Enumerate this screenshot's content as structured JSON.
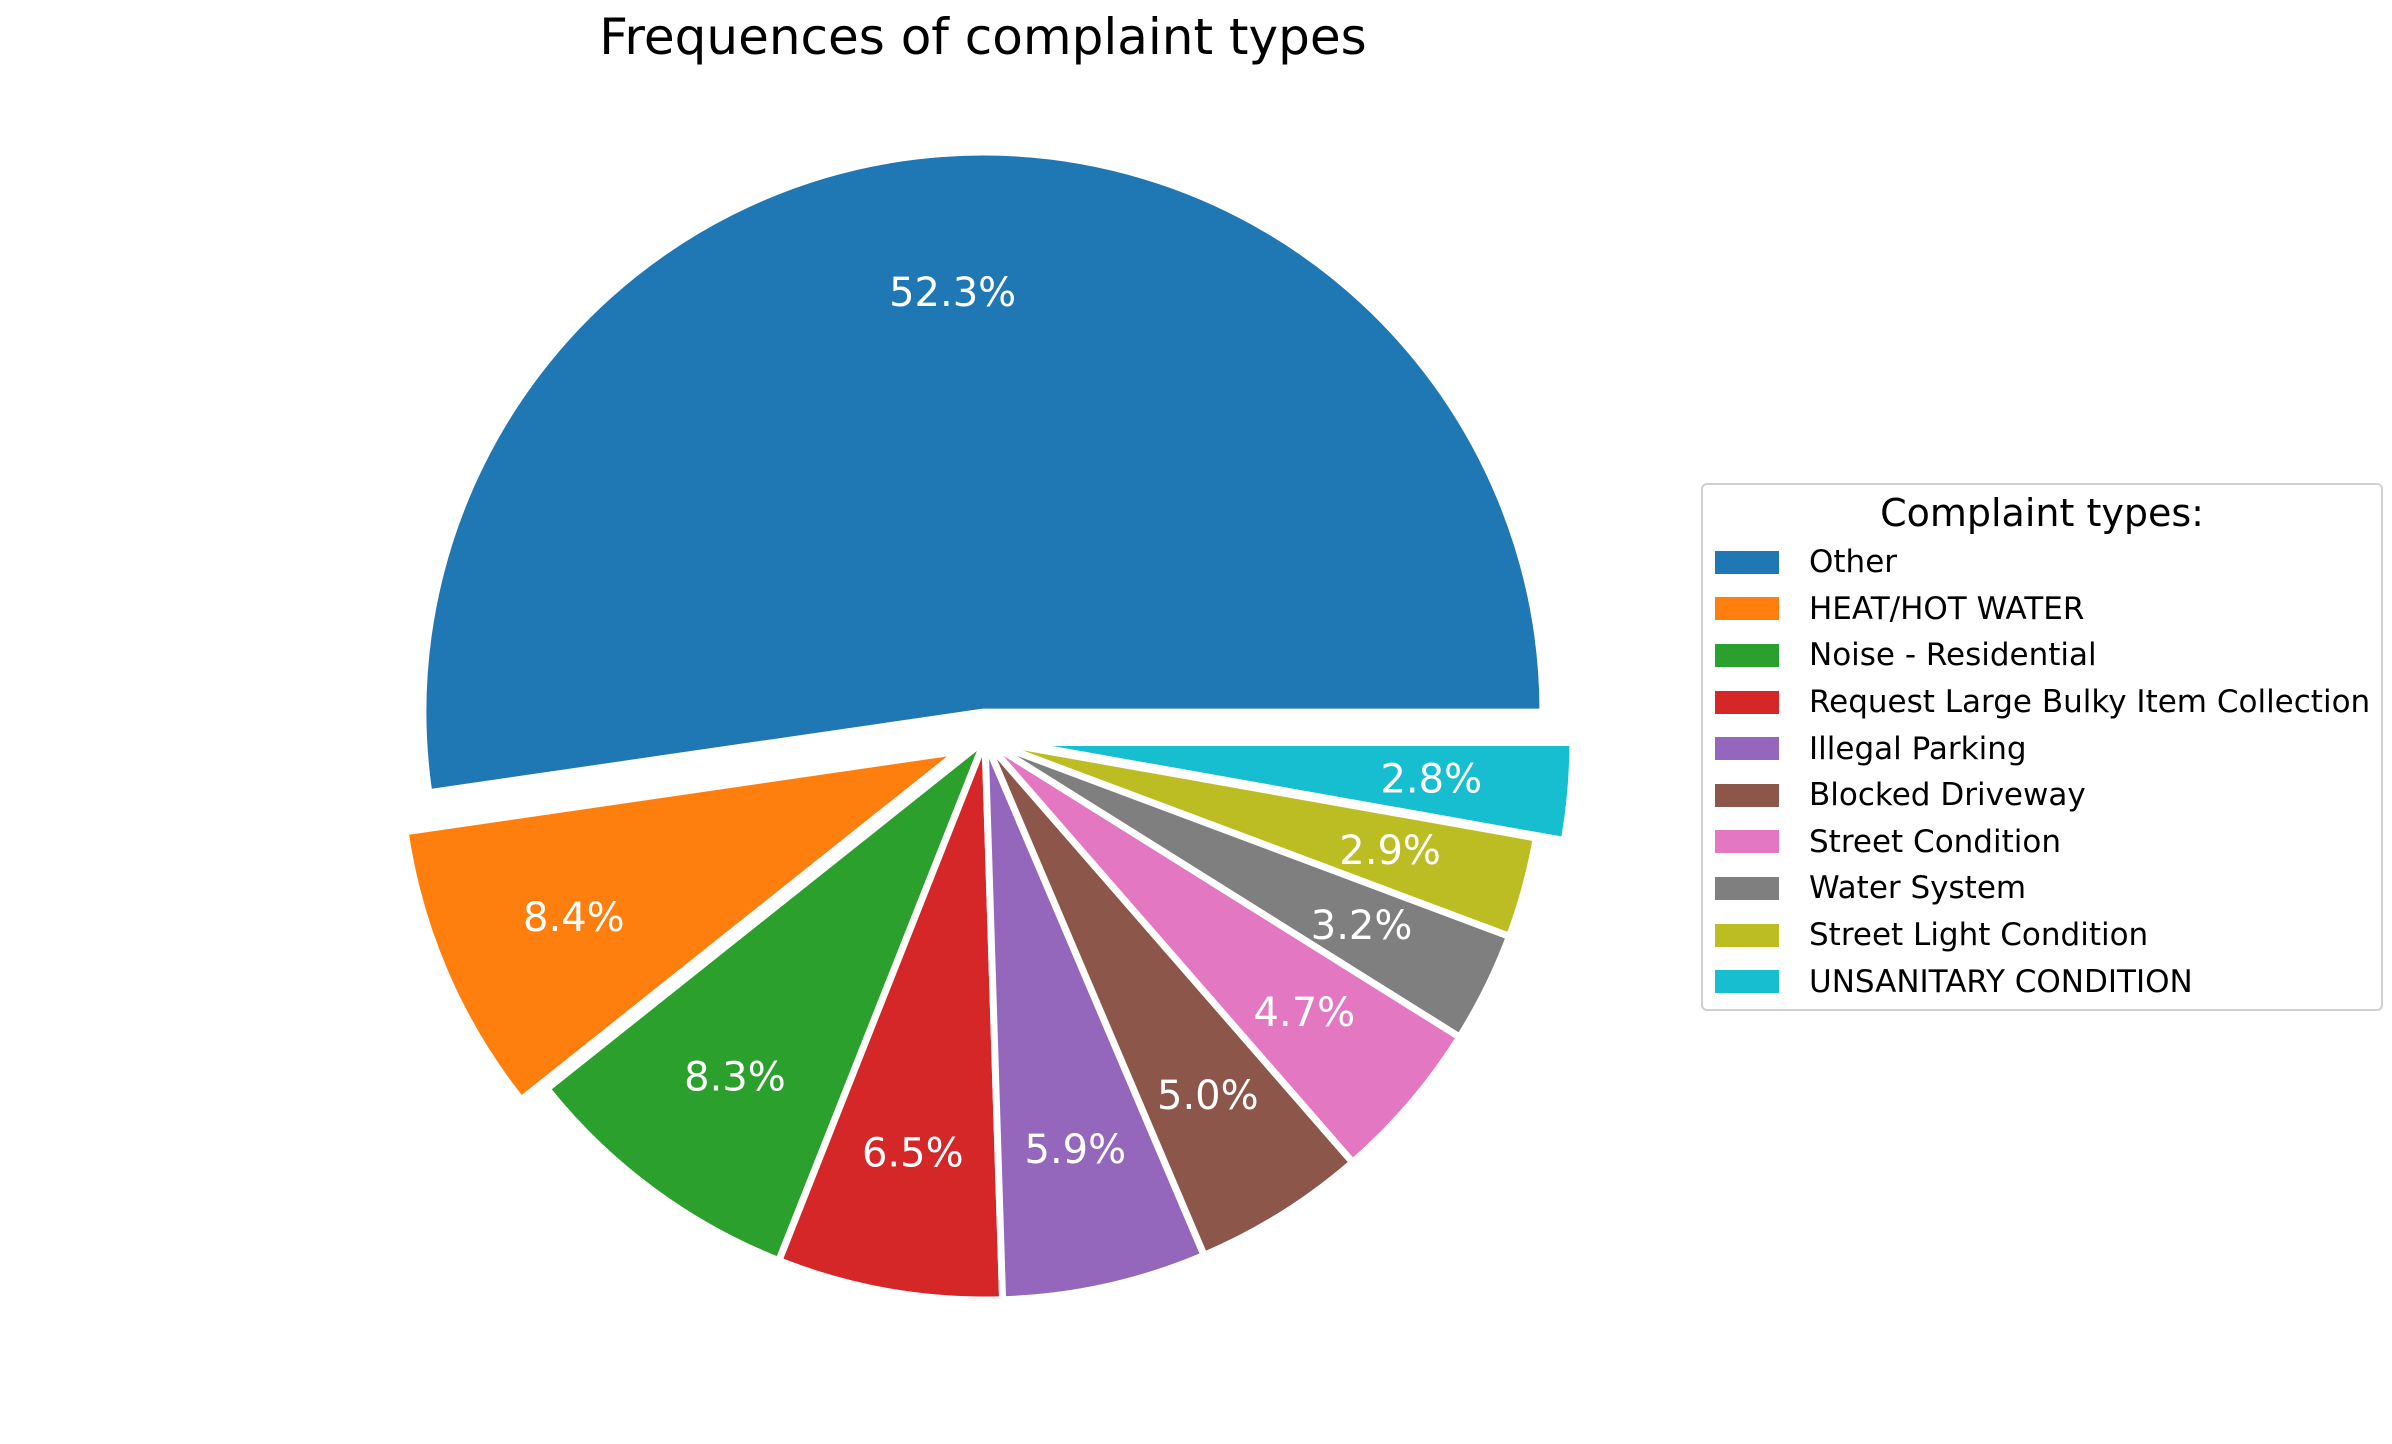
{
  "chart_data": {
    "type": "pie",
    "title": "Frequences of complaint types",
    "legend_title": "Complaint types:",
    "legend_placement": "right",
    "slices": [
      {
        "label": "Other",
        "value": 52.3,
        "display": "52.3%",
        "color": "#1f77b4",
        "exploded": true
      },
      {
        "label": "HEAT/HOT WATER",
        "value": 8.4,
        "display": "8.4%",
        "color": "#ff7f0e",
        "exploded": true
      },
      {
        "label": "Noise - Residential",
        "value": 8.3,
        "display": "8.3%",
        "color": "#2ca02c",
        "exploded": false
      },
      {
        "label": "Request Large Bulky Item Collection",
        "value": 6.5,
        "display": "6.5%",
        "color": "#d62728",
        "exploded": false
      },
      {
        "label": "Illegal Parking",
        "value": 5.9,
        "display": "5.9%",
        "color": "#9467bd",
        "exploded": false
      },
      {
        "label": "Blocked Driveway",
        "value": 5.0,
        "display": "5.0%",
        "color": "#8c564b",
        "exploded": false
      },
      {
        "label": "Street Condition",
        "value": 4.7,
        "display": "4.7%",
        "color": "#e377c2",
        "exploded": false
      },
      {
        "label": "Water System",
        "value": 3.2,
        "display": "3.2%",
        "color": "#7f7f7f",
        "exploded": false
      },
      {
        "label": "Street Light Condition",
        "value": 2.9,
        "display": "2.9%",
        "color": "#bcbd22",
        "exploded": false
      },
      {
        "label": "UNSANITARY CONDITION",
        "value": 2.8,
        "display": "2.8%",
        "color": "#17becf",
        "exploded": true
      }
    ]
  }
}
